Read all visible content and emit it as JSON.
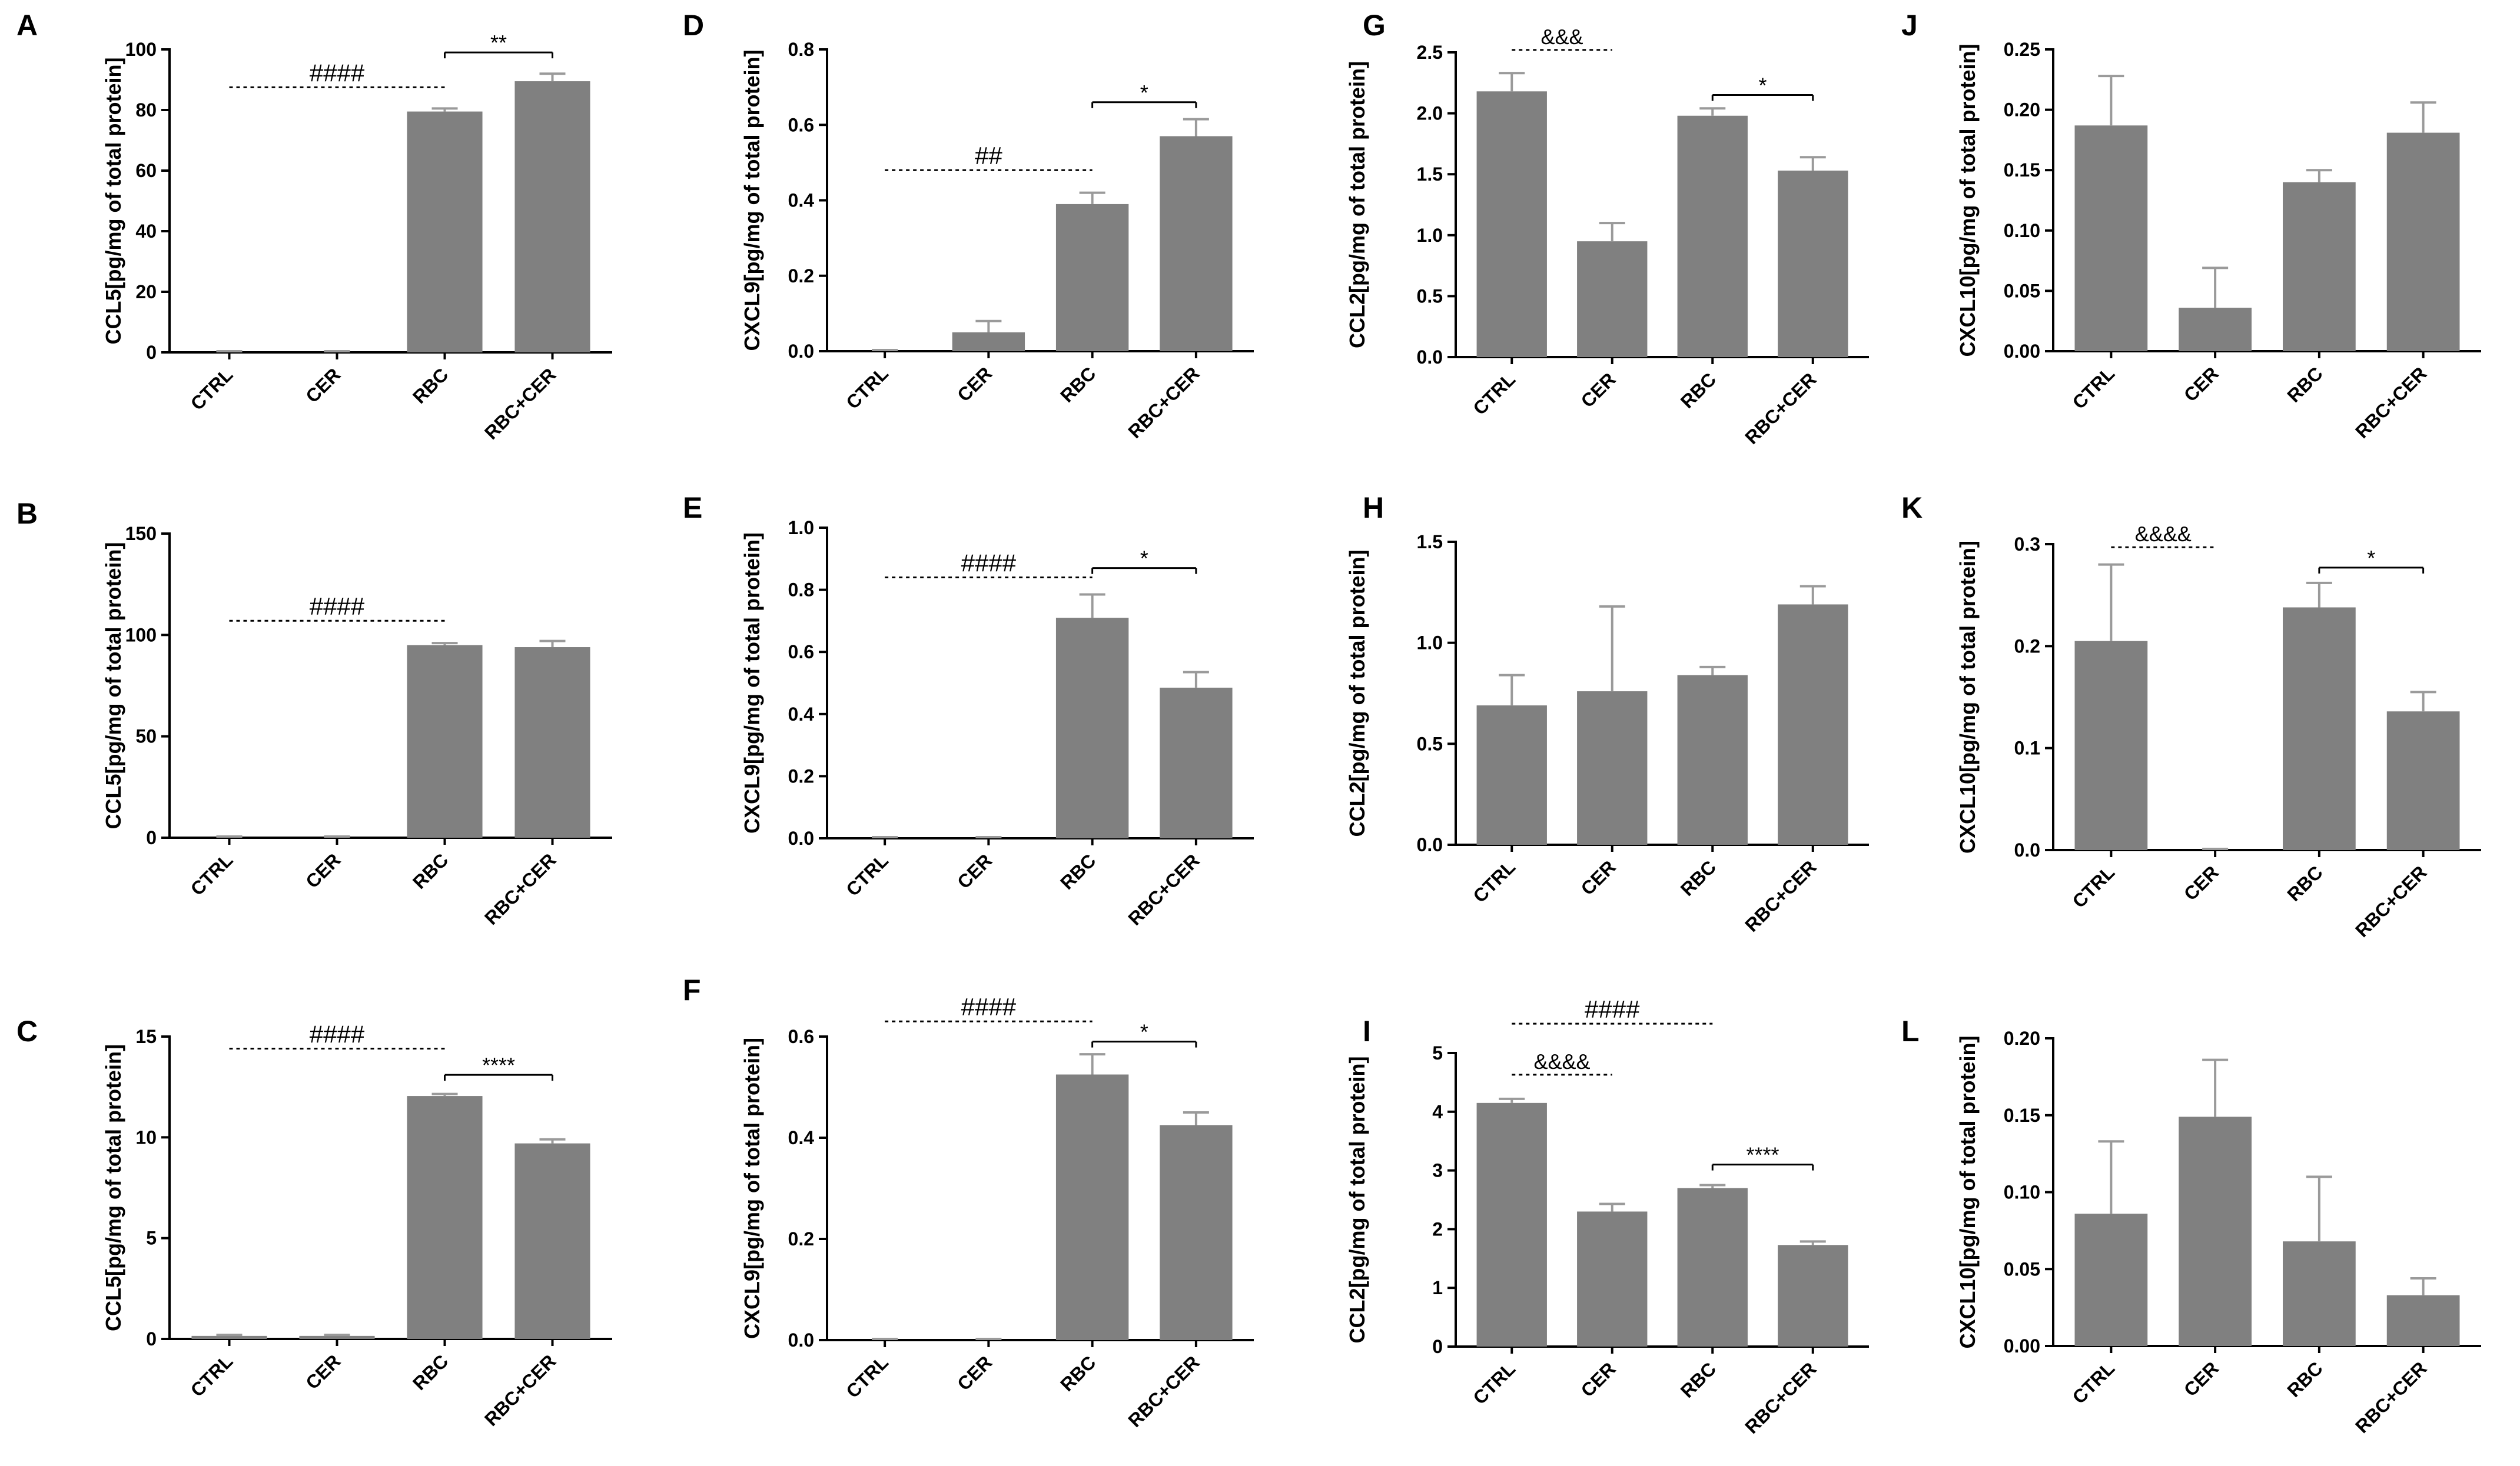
{
  "chart_data": [
    {
      "panel": "A",
      "type": "bar",
      "ylabel": "CCL5[pg/mg of total protein]",
      "categories": [
        "CTRL",
        "CER",
        "RBC",
        "RBC+CER"
      ],
      "values": [
        0,
        0,
        79.5,
        89.5
      ],
      "errors": [
        0,
        0,
        1,
        2.5
      ],
      "ylim": [
        0,
        100
      ],
      "yticks": [
        "0",
        "20",
        "40",
        "60",
        "80",
        "100"
      ],
      "significance": [
        {
          "from": 0,
          "to": 2,
          "label": "####",
          "style": "dashed",
          "y": 87.5
        },
        {
          "from": 2,
          "to": 3,
          "label": "**",
          "style": "solid",
          "y": 99
        }
      ]
    },
    {
      "panel": "B",
      "type": "bar",
      "ylabel": "CCL5[pg/mg of total protein]",
      "categories": [
        "CTRL",
        "CER",
        "RBC",
        "RBC+CER"
      ],
      "values": [
        0,
        0,
        95,
        94
      ],
      "errors": [
        0,
        0,
        1,
        3
      ],
      "ylim": [
        0,
        150
      ],
      "yticks": [
        "0",
        "50",
        "100",
        "150"
      ],
      "significance": [
        {
          "from": 0,
          "to": 2,
          "label": "####",
          "style": "dashed",
          "y": 107
        }
      ]
    },
    {
      "panel": "C",
      "type": "bar",
      "ylabel": "CCL5[pg/mg of total protein]",
      "categories": [
        "CTRL",
        "CER",
        "RBC",
        "RBC+CER"
      ],
      "values": [
        0.15,
        0.15,
        12.05,
        9.7
      ],
      "errors": [
        0.05,
        0.05,
        0.1,
        0.2
      ],
      "ylim": [
        0,
        15
      ],
      "yticks": [
        "0",
        "5",
        "10",
        "15"
      ],
      "significance": [
        {
          "from": 0,
          "to": 2,
          "label": "####",
          "style": "dashed",
          "y": 14.4
        },
        {
          "from": 2,
          "to": 3,
          "label": "****",
          "style": "solid",
          "y": 13.1
        }
      ]
    },
    {
      "panel": "D",
      "type": "bar",
      "ylabel": "CXCL9[pg/mg of total protein]",
      "categories": [
        "CTRL",
        "CER",
        "RBC",
        "RBC+CER"
      ],
      "values": [
        0,
        0.05,
        0.39,
        0.57
      ],
      "errors": [
        0,
        0.03,
        0.03,
        0.045
      ],
      "ylim": [
        0,
        0.8
      ],
      "yticks": [
        "0.0",
        "0.2",
        "0.4",
        "0.6",
        "0.8"
      ],
      "significance": [
        {
          "from": 0,
          "to": 2,
          "label": "##",
          "style": "dashed",
          "y": 0.48
        },
        {
          "from": 2,
          "to": 3,
          "label": "*",
          "style": "solid",
          "y": 0.66
        }
      ]
    },
    {
      "panel": "E",
      "type": "bar",
      "ylabel": "CXCL9[pg/mg of total protein]",
      "categories": [
        "CTRL",
        "CER",
        "RBC",
        "RBC+CER"
      ],
      "values": [
        0,
        0,
        0.71,
        0.485
      ],
      "errors": [
        0,
        0,
        0.075,
        0.05
      ],
      "ylim": [
        0,
        1.0
      ],
      "yticks": [
        "0.0",
        "0.2",
        "0.4",
        "0.6",
        "0.8",
        "1.0"
      ],
      "significance": [
        {
          "from": 0,
          "to": 2,
          "label": "####",
          "style": "dashed",
          "y": 0.84
        },
        {
          "from": 2,
          "to": 3,
          "label": "*",
          "style": "solid",
          "y": 0.87
        }
      ]
    },
    {
      "panel": "F",
      "type": "bar",
      "ylabel": "CXCL9[pg/mg of total protein]",
      "categories": [
        "CTRL",
        "CER",
        "RBC",
        "RBC+CER"
      ],
      "values": [
        0,
        0,
        0.525,
        0.425
      ],
      "errors": [
        0,
        0,
        0.04,
        0.025
      ],
      "ylim": [
        0,
        0.6
      ],
      "yticks": [
        "0.0",
        "0.2",
        "0.4",
        "0.6"
      ],
      "significance": [
        {
          "from": 0,
          "to": 2,
          "label": "####",
          "style": "dashed",
          "y": 0.63
        },
        {
          "from": 2,
          "to": 3,
          "label": "*",
          "style": "solid",
          "y": 0.59
        }
      ]
    },
    {
      "panel": "G",
      "type": "bar",
      "ylabel": "CCL2[pg/mg of total protein]",
      "categories": [
        "CTRL",
        "CER",
        "RBC",
        "RBC+CER"
      ],
      "values": [
        2.18,
        0.95,
        1.98,
        1.53
      ],
      "errors": [
        0.15,
        0.15,
        0.06,
        0.11
      ],
      "ylim": [
        0,
        2.5
      ],
      "yticks": [
        "0.0",
        "0.5",
        "1.0",
        "1.5",
        "2.0",
        "2.5"
      ],
      "significance": [
        {
          "from": 0,
          "to": 1,
          "label": "&&&",
          "style": "dotted",
          "y": 2.52
        },
        {
          "from": 2,
          "to": 3,
          "label": "*",
          "style": "solid",
          "y": 2.15
        }
      ]
    },
    {
      "panel": "H",
      "type": "bar",
      "ylabel": "CCL2[pg/mg of total protein]",
      "categories": [
        "CTRL",
        "CER",
        "RBC",
        "RBC+CER"
      ],
      "values": [
        0.69,
        0.76,
        0.84,
        1.19
      ],
      "errors": [
        0.15,
        0.42,
        0.04,
        0.09
      ],
      "ylim": [
        0,
        1.5
      ],
      "yticks": [
        "0.0",
        "0.5",
        "1.0",
        "1.5"
      ],
      "significance": []
    },
    {
      "panel": "I",
      "type": "bar",
      "ylabel": "CCL2[pg/mg of total protein]",
      "categories": [
        "CTRL",
        "CER",
        "RBC",
        "RBC+CER"
      ],
      "values": [
        4.15,
        2.3,
        2.7,
        1.73
      ],
      "errors": [
        0.07,
        0.13,
        0.05,
        0.06
      ],
      "ylim": [
        0,
        5
      ],
      "yticks": [
        "0",
        "1",
        "2",
        "3",
        "4",
        "5"
      ],
      "significance": [
        {
          "from": 0,
          "to": 2,
          "label": "####",
          "style": "dashed",
          "y": 5.5
        },
        {
          "from": 0,
          "to": 1,
          "label": "&&&&",
          "style": "dotted",
          "y": 4.63
        },
        {
          "from": 2,
          "to": 3,
          "label": "****",
          "style": "solid",
          "y": 3.1
        }
      ]
    },
    {
      "panel": "J",
      "type": "bar",
      "ylabel": "CXCL10[pg/mg of total protein]",
      "categories": [
        "CTRL",
        "CER",
        "RBC",
        "RBC+CER"
      ],
      "values": [
        0.187,
        0.036,
        0.14,
        0.181
      ],
      "errors": [
        0.041,
        0.033,
        0.01,
        0.025
      ],
      "ylim": [
        0,
        0.25
      ],
      "yticks": [
        "0.00",
        "0.05",
        "0.10",
        "0.15",
        "0.20",
        "0.25"
      ],
      "significance": []
    },
    {
      "panel": "K",
      "type": "bar",
      "ylabel": "CXCL10[pg/mg of total protein]",
      "categories": [
        "CTRL",
        "CER",
        "RBC",
        "RBC+CER"
      ],
      "values": [
        0.205,
        0,
        0.238,
        0.136
      ],
      "errors": [
        0.075,
        0,
        0.024,
        0.019
      ],
      "ylim": [
        0,
        0.3
      ],
      "yticks": [
        "0.0",
        "0.1",
        "0.2",
        "0.3"
      ],
      "significance": [
        {
          "from": 0,
          "to": 1,
          "label": "&&&&",
          "style": "dotted",
          "y": 0.297
        },
        {
          "from": 2,
          "to": 3,
          "label": "*",
          "style": "solid",
          "y": 0.277
        }
      ]
    },
    {
      "panel": "L",
      "type": "bar",
      "ylabel": "CXCL10[pg/mg of total protein]",
      "categories": [
        "CTRL",
        "CER",
        "RBC",
        "RBC+CER"
      ],
      "values": [
        0.086,
        0.149,
        0.068,
        0.033
      ],
      "errors": [
        0.047,
        0.037,
        0.042,
        0.011
      ],
      "ylim": [
        0,
        0.2
      ],
      "yticks": [
        "0.00",
        "0.05",
        "0.10",
        "0.15",
        "0.20"
      ],
      "significance": []
    }
  ],
  "colors": {
    "bar": "#808080",
    "error": "#9a9a9a",
    "axis": "#000000"
  }
}
